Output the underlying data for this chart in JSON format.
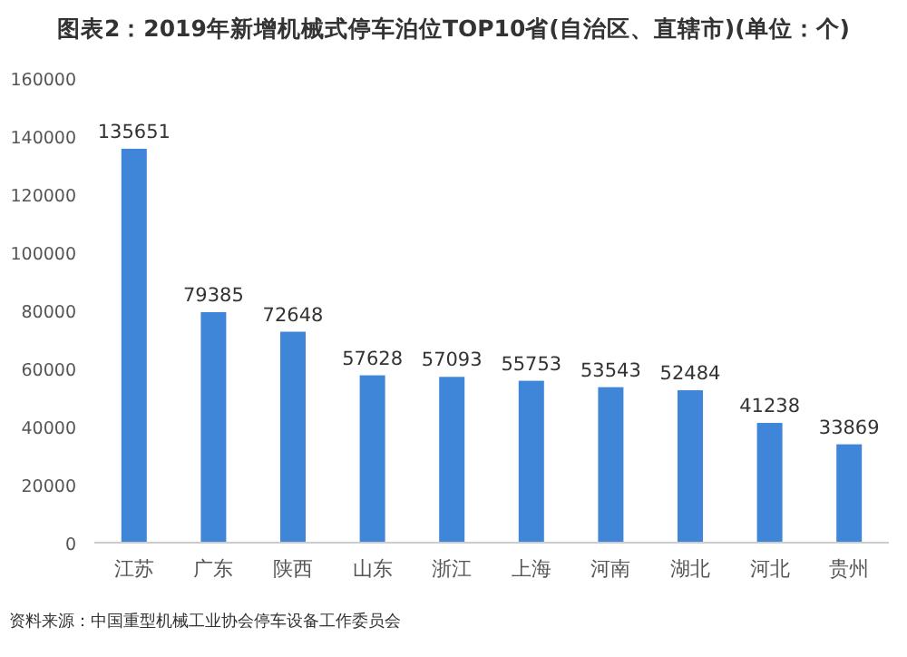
{
  "chart_data": {
    "type": "bar",
    "title": "图表2：2019年新增机械式停车泊位TOP10省(自治区、直辖市)(单位：个)",
    "categories": [
      "江苏",
      "广东",
      "陕西",
      "山东",
      "浙江",
      "上海",
      "河南",
      "湖北",
      "河北",
      "贵州"
    ],
    "values": [
      135651,
      79385,
      72648,
      57628,
      57093,
      55753,
      53543,
      52484,
      41238,
      33869
    ],
    "color": "#3f86d9",
    "data_labels": true,
    "grid": false,
    "ylim": [
      0,
      160000
    ],
    "yticks": [
      0,
      20000,
      40000,
      60000,
      80000,
      100000,
      120000,
      140000,
      160000
    ],
    "annotations": [
      "资料来源：中国重型机械工业协会停车设备工作委员会"
    ]
  }
}
